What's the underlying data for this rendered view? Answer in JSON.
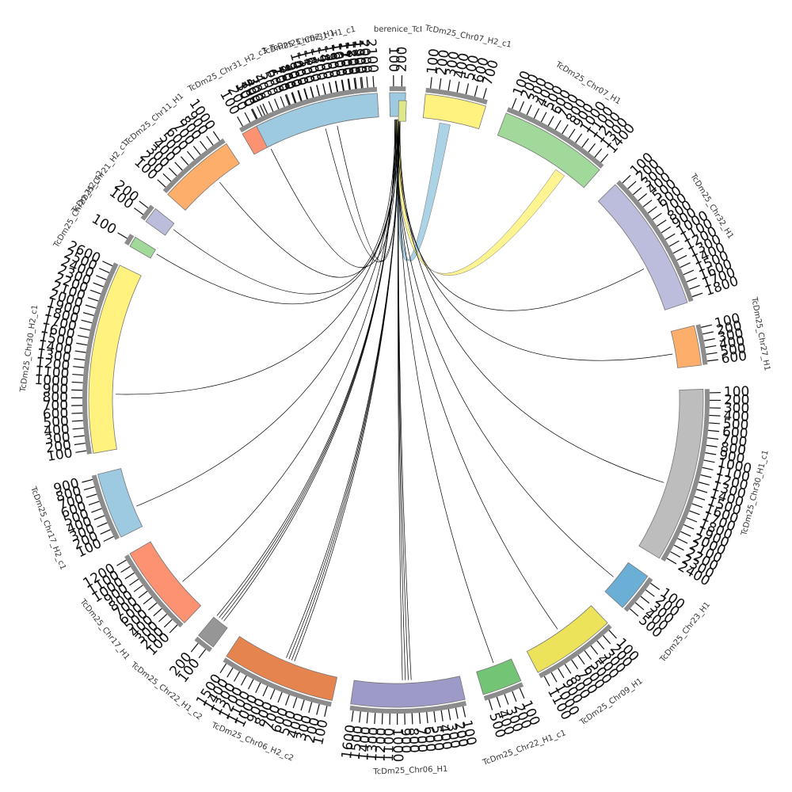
{
  "segments": [
    {
      "id": "berenice",
      "label": "berenice_TcI",
      "color": "#9ecae1",
      "ticks": [
        "100",
        "200"
      ]
    },
    {
      "id": "chr07_h2_c1",
      "label": "TcDm25_Chr07_H2_c1",
      "color": "#fff27f",
      "ticks": [
        "100",
        "200",
        "300",
        "400",
        "500",
        "600",
        "700"
      ]
    },
    {
      "id": "chr07_h1",
      "label": "TcDm25_Chr07_H1",
      "color": "#a1d99b",
      "ticks": [
        "100",
        "200",
        "300",
        "400",
        "500",
        "600",
        "700",
        "800",
        "900",
        "1000",
        "1100",
        "1200",
        "1300",
        "1400"
      ]
    },
    {
      "id": "chr32_h1",
      "label": "TcDm25_Chr32_H1",
      "color": "#bcbddc",
      "ticks": [
        "100",
        "200",
        "300",
        "400",
        "500",
        "600",
        "700",
        "800",
        "900",
        "1000",
        "1100",
        "1200",
        "1300",
        "1400",
        "1500",
        "1600",
        "1700",
        "1800"
      ]
    },
    {
      "id": "chr27_h1",
      "label": "TcDm25_Chr27_H1",
      "color": "#fdae6b",
      "ticks": [
        "100",
        "200",
        "300",
        "400",
        "500",
        "600"
      ]
    },
    {
      "id": "chr30_h1_c1",
      "label": "TcDm25_Chr30_H1_c1",
      "color": "#bdbdbd",
      "ticks": [
        "100",
        "200",
        "300",
        "400",
        "500",
        "600",
        "700",
        "800",
        "900",
        "1000",
        "1100",
        "1200",
        "1300",
        "1400",
        "1500",
        "1600",
        "1700",
        "1800",
        "1900",
        "2000",
        "2100",
        "2200",
        "2300",
        "2400"
      ]
    },
    {
      "id": "chr23_h1",
      "label": "TcDm25_Chr23_H1",
      "color": "#6baed6",
      "ticks": [
        "100",
        "200",
        "300",
        "400",
        "500"
      ]
    },
    {
      "id": "chr09_h1",
      "label": "TcDm25_Chr09_H1",
      "color": "#ece35a",
      "ticks": [
        "100",
        "200",
        "300",
        "400",
        "500",
        "600",
        "700",
        "800",
        "900",
        "1000",
        "1100"
      ]
    },
    {
      "id": "chr22_h1_c1",
      "label": "TcDm25_Chr22_H1_c1",
      "color": "#74c476",
      "ticks": [
        "100",
        "200",
        "300",
        "400",
        "500"
      ]
    },
    {
      "id": "chr06_h1",
      "label": "TcDm25_Chr06_H1",
      "color": "#9e9ac8",
      "ticks": [
        "100",
        "200",
        "300",
        "400",
        "500",
        "600",
        "700",
        "800",
        "900",
        "1000",
        "1100",
        "1200",
        "1300",
        "1400",
        "1500",
        "1600"
      ]
    },
    {
      "id": "chr06_h2_c2",
      "label": "TcDm25_Chr06_H2_c2",
      "color": "#e6844f",
      "ticks": [
        "100",
        "200",
        "300",
        "400",
        "500",
        "600",
        "700",
        "800",
        "900",
        "1000",
        "1100",
        "1200",
        "1300",
        "1400",
        "1500"
      ]
    },
    {
      "id": "chr22_h1_c2",
      "label": "TcDm25_Chr22_H1_c2",
      "color": "#969696",
      "ticks": [
        "100",
        "200"
      ]
    },
    {
      "id": "chr17_h1",
      "label": "TcDm25_Chr17_H1",
      "color": "#fc9272",
      "ticks": [
        "100",
        "200",
        "300",
        "400",
        "500",
        "600",
        "700",
        "800",
        "900",
        "1000",
        "1100",
        "1200"
      ]
    },
    {
      "id": "chr17_h2_c1",
      "label": "TcDm25_Chr17_H2_c1",
      "color": "#9ecae1",
      "ticks": [
        "100",
        "200",
        "300",
        "400",
        "500",
        "600",
        "700",
        "800",
        "900"
      ]
    },
    {
      "id": "chr30_h2_c1",
      "label": "TcDm25_Chr30_H2_c1",
      "color": "#fff27f",
      "ticks": [
        "100",
        "200",
        "300",
        "400",
        "500",
        "600",
        "700",
        "800",
        "900",
        "1000",
        "1100",
        "1200",
        "1300",
        "1400",
        "1500",
        "1600",
        "1700",
        "1800",
        "1900",
        "2000",
        "2100",
        "2200",
        "2300",
        "2400",
        "2500",
        "2600"
      ]
    },
    {
      "id": "chr22_h2_c2",
      "label": "TcDm25_Chr22_H2_c2",
      "color": "#a1d99b",
      "ticks": [
        "100"
      ]
    },
    {
      "id": "chr21_h2_c1",
      "label": "TcDm25_Chr21_H2_c1",
      "color": "#bcbddc",
      "ticks": [
        "100",
        "200"
      ]
    },
    {
      "id": "chr11_h1",
      "label": "TcDm25_Chr11_H1",
      "color": "#fdae6b",
      "ticks": [
        "100",
        "200",
        "300",
        "400",
        "500",
        "600",
        "700",
        "800",
        "900",
        "1000"
      ]
    },
    {
      "id": "chr31_h2_c3",
      "label": "TcDm25_Chr31_H2_c3",
      "color": "#fc9272",
      "ticks": [
        "100",
        "200",
        "300",
        "400"
      ]
    },
    {
      "id": "chr31_h1_c1",
      "label": "TcDm25_Chr31_H1_c1",
      "color": "#bdbdbd",
      "ticks": [
        "100",
        "200",
        "300",
        "400",
        "500",
        "600",
        "700",
        "800",
        "900",
        "1000",
        "1100",
        "1200",
        "1300"
      ]
    },
    {
      "id": "chr02_h1",
      "label": "TcDm25_Chr02_H1",
      "color": "#9ecae1",
      "ticks": [
        "100",
        "200",
        "300",
        "400",
        "500",
        "600",
        "700",
        "800",
        "900",
        "1000",
        "1100",
        "1200",
        "1300",
        "1400",
        "1500",
        "1600",
        "1700",
        "1800",
        "1900",
        "2000",
        "2100"
      ]
    },
    {
      "id": "berenice_inner",
      "label": "",
      "color": "#dde88a",
      "ticks": []
    }
  ],
  "links": [
    {
      "from": "berenice",
      "to": "chr07_h2_c1",
      "color": "#9ecae1"
    },
    {
      "from": "berenice",
      "to": "chr07_h1",
      "color": "#fff27f"
    },
    {
      "from": "berenice",
      "to": "chr32_h1",
      "color": "#000000"
    },
    {
      "from": "berenice",
      "to": "chr27_h1",
      "color": "#000000"
    },
    {
      "from": "berenice",
      "to": "chr30_h1_c1",
      "color": "#000000"
    },
    {
      "from": "berenice",
      "to": "chr23_h1",
      "color": "#000000"
    },
    {
      "from": "berenice",
      "to": "chr09_h1",
      "color": "#000000"
    },
    {
      "from": "berenice",
      "to": "chr22_h1_c1",
      "color": "#000000"
    },
    {
      "from": "berenice",
      "to": "chr06_h1",
      "color": "#000000"
    },
    {
      "from": "berenice",
      "to": "chr06_h2_c2",
      "color": "#000000"
    },
    {
      "from": "berenice",
      "to": "chr22_h1_c2",
      "color": "#000000"
    },
    {
      "from": "berenice",
      "to": "chr17_h1",
      "color": "#000000"
    },
    {
      "from": "berenice",
      "to": "chr17_h2_c1",
      "color": "#000000"
    },
    {
      "from": "berenice",
      "to": "chr30_h2_c1",
      "color": "#000000"
    },
    {
      "from": "berenice",
      "to": "chr22_h2_c2",
      "color": "#000000"
    },
    {
      "from": "berenice",
      "to": "chr21_h2_c1",
      "color": "#000000"
    },
    {
      "from": "berenice",
      "to": "chr11_h1",
      "color": "#000000"
    },
    {
      "from": "berenice",
      "to": "chr31_h2_c3",
      "color": "#000000"
    },
    {
      "from": "berenice",
      "to": "chr31_h1_c1",
      "color": "#000000"
    },
    {
      "from": "berenice",
      "to": "chr02_h1",
      "color": "#000000"
    }
  ]
}
